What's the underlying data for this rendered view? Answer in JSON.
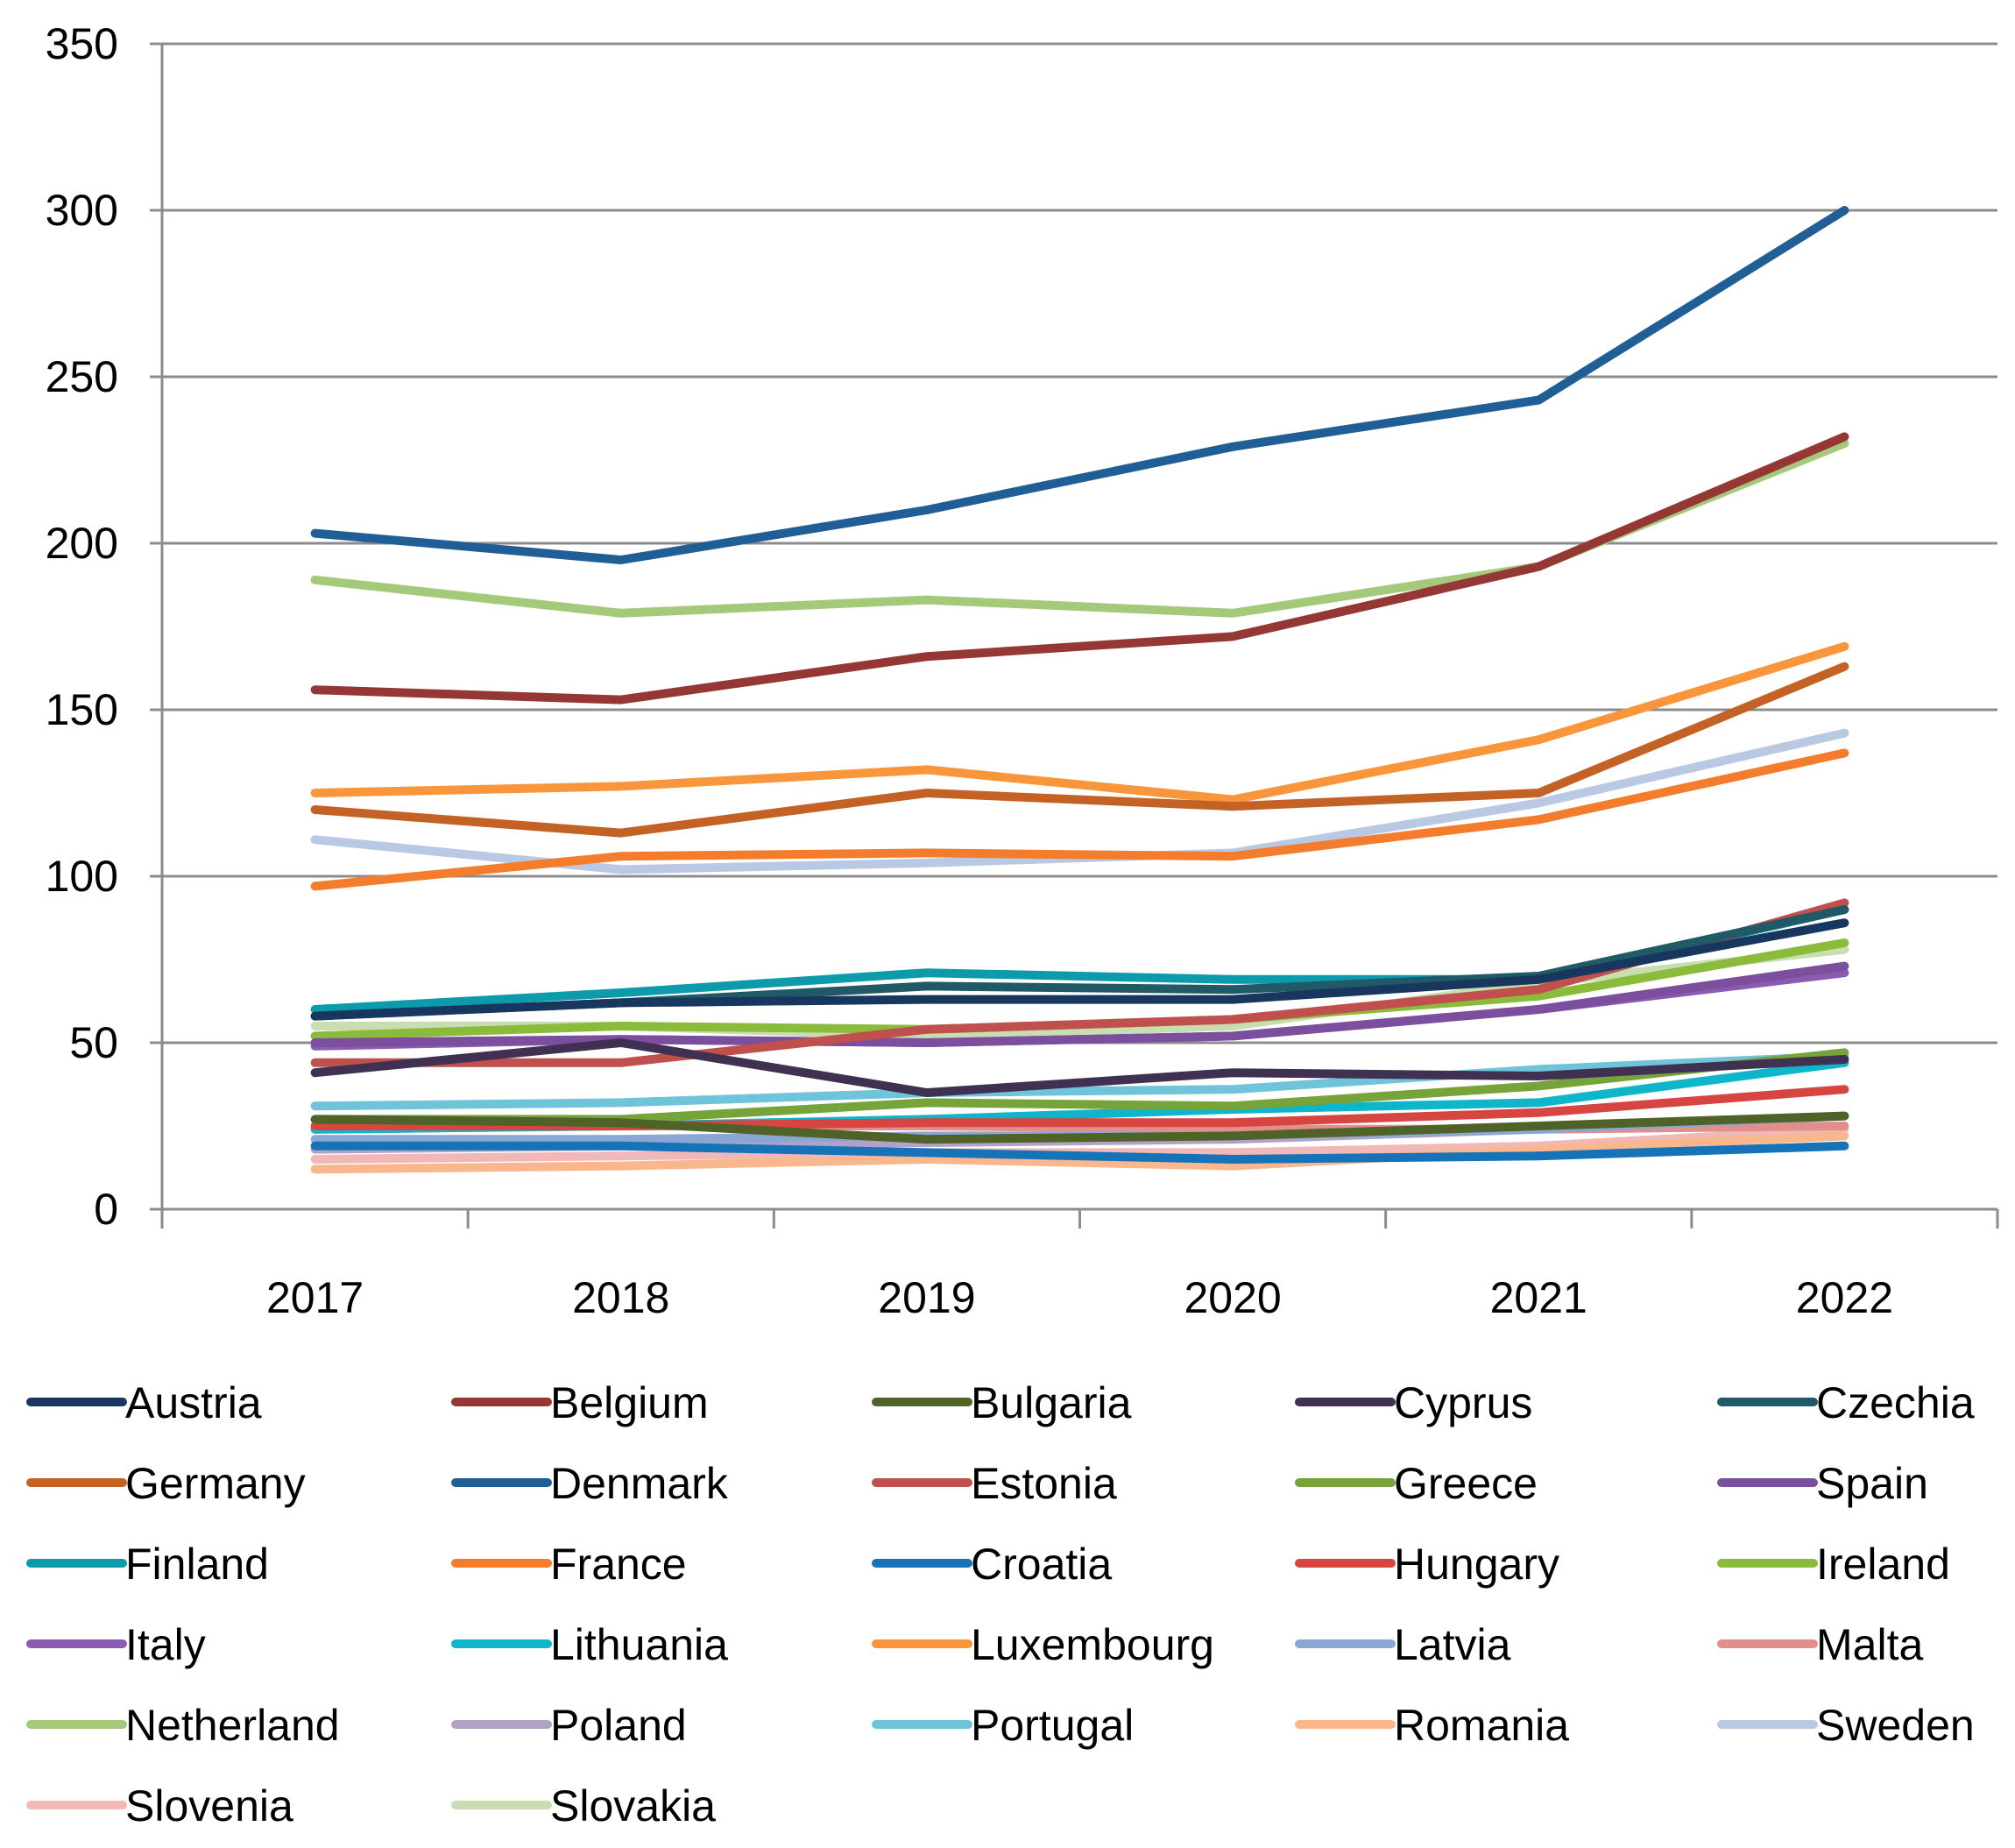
{
  "chart_data": {
    "type": "line",
    "title": "",
    "xlabel": "",
    "ylabel": "",
    "x": [
      "2017",
      "2018",
      "2019",
      "2020",
      "2021",
      "2022"
    ],
    "ylim": [
      0,
      350
    ],
    "y_ticks": [
      "0",
      "50",
      "100",
      "150",
      "200",
      "250",
      "300",
      "350"
    ],
    "grid": "horizontal",
    "legend_position": "bottom",
    "series": [
      {
        "name": "Austria",
        "color": "#17375e",
        "values": [
          58,
          62,
          63,
          63,
          69,
          86
        ]
      },
      {
        "name": "Belgium",
        "color": "#953735",
        "values": [
          156,
          153,
          166,
          172,
          193,
          232
        ]
      },
      {
        "name": "Bulgaria",
        "color": "#4f6228",
        "values": [
          27,
          26,
          21,
          22,
          25,
          28
        ]
      },
      {
        "name": "Cyprus",
        "color": "#403152",
        "values": [
          41,
          50,
          35,
          41,
          40,
          45
        ]
      },
      {
        "name": "Czechia",
        "color": "#215967",
        "values": [
          58,
          62,
          67,
          66,
          70,
          90
        ]
      },
      {
        "name": "Germany",
        "color": "#c46125",
        "values": [
          120,
          113,
          125,
          121,
          125,
          163
        ]
      },
      {
        "name": "Denmark",
        "color": "#1f5f95",
        "values": [
          203,
          195,
          210,
          229,
          243,
          300
        ]
      },
      {
        "name": "Estonia",
        "color": "#c0504d",
        "values": [
          44,
          44,
          54,
          57,
          66,
          92
        ]
      },
      {
        "name": "Greece",
        "color": "#76a33a",
        "values": [
          27,
          27,
          32,
          31,
          37,
          47
        ]
      },
      {
        "name": "Spain",
        "color": "#7b4f9d",
        "values": [
          50,
          51,
          50,
          52,
          60,
          73
        ]
      },
      {
        "name": "Finland",
        "color": "#0d9aab",
        "values": [
          60,
          65,
          71,
          69,
          69,
          90
        ]
      },
      {
        "name": "France",
        "color": "#f47c2d",
        "values": [
          97,
          106,
          107,
          106,
          117,
          137
        ]
      },
      {
        "name": "Croatia",
        "color": "#1673b8",
        "values": [
          19,
          19,
          17,
          15,
          16,
          19
        ]
      },
      {
        "name": "Hungary",
        "color": "#d64541",
        "values": [
          25,
          25,
          26,
          26,
          29,
          36
        ]
      },
      {
        "name": "Ireland",
        "color": "#8bbb3a",
        "values": [
          52,
          55,
          54,
          57,
          64,
          80
        ]
      },
      {
        "name": "Italy",
        "color": "#8a5bb0",
        "values": [
          49,
          51,
          50,
          52,
          60,
          71
        ]
      },
      {
        "name": "Lithuania",
        "color": "#0fb5c8",
        "values": [
          24,
          25,
          27,
          30,
          32,
          44
        ]
      },
      {
        "name": "Luxembourg",
        "color": "#f9953a",
        "values": [
          125,
          127,
          132,
          123,
          141,
          169
        ]
      },
      {
        "name": "Latvia",
        "color": "#8aa6d2",
        "values": [
          21,
          21,
          22,
          22,
          24,
          28
        ]
      },
      {
        "name": "Malta",
        "color": "#e08f8d",
        "values": [
          24,
          25,
          25,
          24,
          24,
          25
        ]
      },
      {
        "name": "Netherland",
        "color": "#a4c97b",
        "values": [
          189,
          179,
          183,
          179,
          193,
          230
        ]
      },
      {
        "name": "Poland",
        "color": "#b2a2c9",
        "values": [
          18,
          19,
          20,
          21,
          24,
          28
        ]
      },
      {
        "name": "Portugal",
        "color": "#6fc4d9",
        "values": [
          31,
          32,
          35,
          36,
          42,
          46
        ]
      },
      {
        "name": "Romania",
        "color": "#fab78d",
        "values": [
          12,
          13,
          15,
          13,
          18,
          22
        ]
      },
      {
        "name": "Sweden",
        "color": "#b9c8e3",
        "values": [
          111,
          102,
          104,
          107,
          122,
          143
        ]
      },
      {
        "name": "Slovenia",
        "color": "#f2b8b8",
        "values": [
          15,
          16,
          17,
          17,
          19,
          24
        ]
      },
      {
        "name": "Slovakia",
        "color": "#c8ddb0",
        "values": [
          55,
          55,
          52,
          55,
          68,
          78
        ]
      }
    ]
  }
}
